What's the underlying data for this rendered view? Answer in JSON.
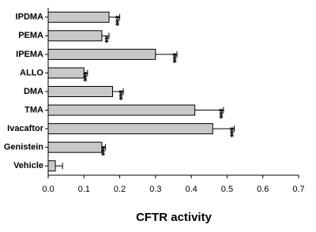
{
  "chart_data": {
    "type": "hbar",
    "xlabel": "CFTR activity",
    "categories": [
      "IPDMA",
      "PEMA",
      "IPEMA",
      "ALLO",
      "DMA",
      "TMA",
      "Ivacaftor",
      "Genistein",
      "Vehicle"
    ],
    "values": [
      0.17,
      0.15,
      0.3,
      0.1,
      0.18,
      0.41,
      0.46,
      0.15,
      0.02
    ],
    "errors": [
      0.03,
      0.02,
      0.06,
      0.01,
      0.03,
      0.08,
      0.06,
      0.01,
      0.02
    ],
    "significance": [
      "***",
      "**",
      "***",
      "***",
      "***",
      "***",
      "***",
      "***",
      null
    ],
    "color": "#c8c8c8",
    "xlim": [
      0,
      0.7
    ],
    "xticks": [
      {
        "value": 0,
        "label": "0.0"
      },
      0.1,
      0.2,
      0.3,
      0.4,
      0.5,
      0.6,
      0.7
    ]
  }
}
